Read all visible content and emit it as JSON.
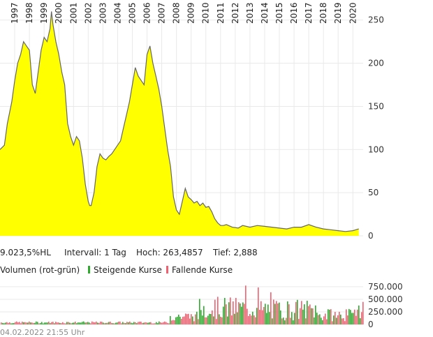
{
  "chart_data": [
    {
      "type": "area",
      "x_tick_labels": [
        "1997",
        "1998",
        "1999",
        "2000",
        "2001",
        "2002",
        "2003",
        "2004",
        "2005",
        "2006",
        "2007",
        "2008",
        "2009",
        "2010",
        "2011",
        "2012",
        "2013",
        "2014",
        "2015",
        "2016",
        "2017",
        "2018",
        "2019",
        "2020"
      ],
      "y_tick_labels": [
        "0",
        "50",
        "100",
        "150",
        "200",
        "250"
      ],
      "ylim": [
        0,
        270
      ],
      "x": [
        1996.5,
        1996.8,
        1997.0,
        1997.3,
        1997.5,
        1997.7,
        1997.9,
        1998.1,
        1998.3,
        1998.5,
        1998.7,
        1998.9,
        1999.1,
        1999.3,
        1999.5,
        1999.7,
        1999.9,
        2000.0,
        2000.1,
        2000.3,
        2000.5,
        2000.7,
        2000.9,
        2001.1,
        2001.3,
        2001.5,
        2001.7,
        2001.9,
        2002.1,
        2002.3,
        2002.5,
        2002.6,
        2002.7,
        2002.9,
        2003.1,
        2003.3,
        2003.5,
        2003.7,
        2003.9,
        2004.1,
        2004.3,
        2004.5,
        2004.7,
        2004.9,
        2005.1,
        2005.3,
        2005.5,
        2005.7,
        2005.9,
        2006.1,
        2006.3,
        2006.5,
        2006.7,
        2006.9,
        2007.1,
        2007.3,
        2007.5,
        2007.7,
        2007.9,
        2008.1,
        2008.3,
        2008.5,
        2008.7,
        2008.9,
        2009.1,
        2009.3,
        2009.5,
        2009.7,
        2009.9,
        2010.1,
        2010.3,
        2010.5,
        2010.7,
        2010.9,
        2011.1,
        2011.3,
        2011.5,
        2011.7,
        2011.9,
        2012.3,
        2012.7,
        2013.0,
        2013.5,
        2014.0,
        2014.5,
        2015.0,
        2015.5,
        2016.0,
        2016.5,
        2017.0,
        2017.5,
        2018.0,
        2018.5,
        2019.0,
        2019.5,
        2020.0,
        2020.5,
        2020.9
      ],
      "values": [
        100,
        105,
        130,
        155,
        180,
        200,
        210,
        225,
        220,
        215,
        175,
        165,
        190,
        215,
        230,
        225,
        240,
        260,
        245,
        225,
        210,
        190,
        175,
        130,
        115,
        105,
        115,
        110,
        90,
        60,
        40,
        35,
        35,
        50,
        80,
        95,
        90,
        88,
        92,
        95,
        100,
        105,
        110,
        125,
        140,
        155,
        175,
        195,
        185,
        180,
        175,
        210,
        220,
        200,
        185,
        170,
        150,
        125,
        100,
        80,
        45,
        30,
        25,
        40,
        55,
        45,
        42,
        38,
        40,
        35,
        38,
        33,
        34,
        28,
        20,
        15,
        12,
        12,
        13,
        10,
        9,
        12,
        10,
        12,
        11,
        10,
        9,
        8,
        10,
        10,
        13,
        10,
        8,
        7,
        6,
        5,
        6,
        8
      ],
      "high": "263,4857",
      "low": "2,888",
      "interval": "1 Tag"
    },
    {
      "type": "bar",
      "title": "Volumen (rot-grün)",
      "y_tick_labels": [
        "0",
        "250.000",
        "500.000",
        "750.000"
      ],
      "ylim": [
        0,
        860000
      ],
      "series": [
        {
          "name": "Steigende Kurse",
          "color": "#2eaa2e"
        },
        {
          "name": "Fallende Kurse",
          "color": "#f06070"
        }
      ]
    }
  ],
  "info": {
    "prefix": "9.023,5%HL",
    "interval_label": "Intervall: 1 Tag",
    "high_label": "Hoch: 263,4857",
    "low_label": "Tief:  2,888"
  },
  "legend": {
    "title": "Volumen (rot-grün)",
    "rising": "Steigende Kurse",
    "falling": "Fallende Kurse"
  },
  "colors": {
    "area_fill": "#ffff00",
    "area_line": "#666666",
    "rising": "#2eaa2e",
    "falling": "#f06070",
    "grid": "#e9e9e9"
  },
  "footer": "04.02.2022 21:55 Uhr"
}
